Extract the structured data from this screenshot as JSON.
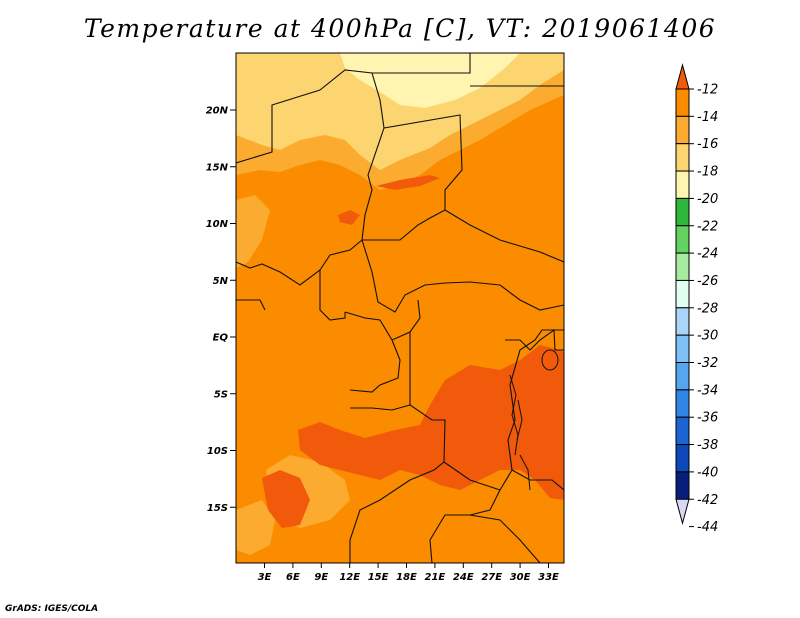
{
  "title": "Temperature at 400hPa [C], VT: 2019061406",
  "credit": "GrADS: IGES/COLA",
  "map": {
    "y_ticks": [
      "20N",
      "15N",
      "10N",
      "5N",
      "EQ",
      "5S",
      "10S",
      "15S"
    ],
    "x_ticks": [
      "3E",
      "6E",
      "9E",
      "12E",
      "15E",
      "18E",
      "21E",
      "24E",
      "27E",
      "30E",
      "33E"
    ]
  },
  "colorbar": {
    "labels": [
      "-12",
      "-14",
      "-16",
      "-18",
      "-20",
      "-22",
      "-24",
      "-26",
      "-28",
      "-30",
      "-32",
      "-34",
      "-36",
      "-38",
      "-40",
      "-42",
      "-44"
    ],
    "colors": [
      "#f05a0a",
      "#fb8c00",
      "#fbac30",
      "#fcd470",
      "#fff5b0",
      "#2db83b",
      "#62d260",
      "#a6eba0",
      "#e0ffef",
      "#a8d5f8",
      "#7fc0f5",
      "#55a5ef",
      "#2f86e6",
      "#1c64d4",
      "#0f48b8",
      "#071f7a",
      "#d8d8f5"
    ]
  }
}
